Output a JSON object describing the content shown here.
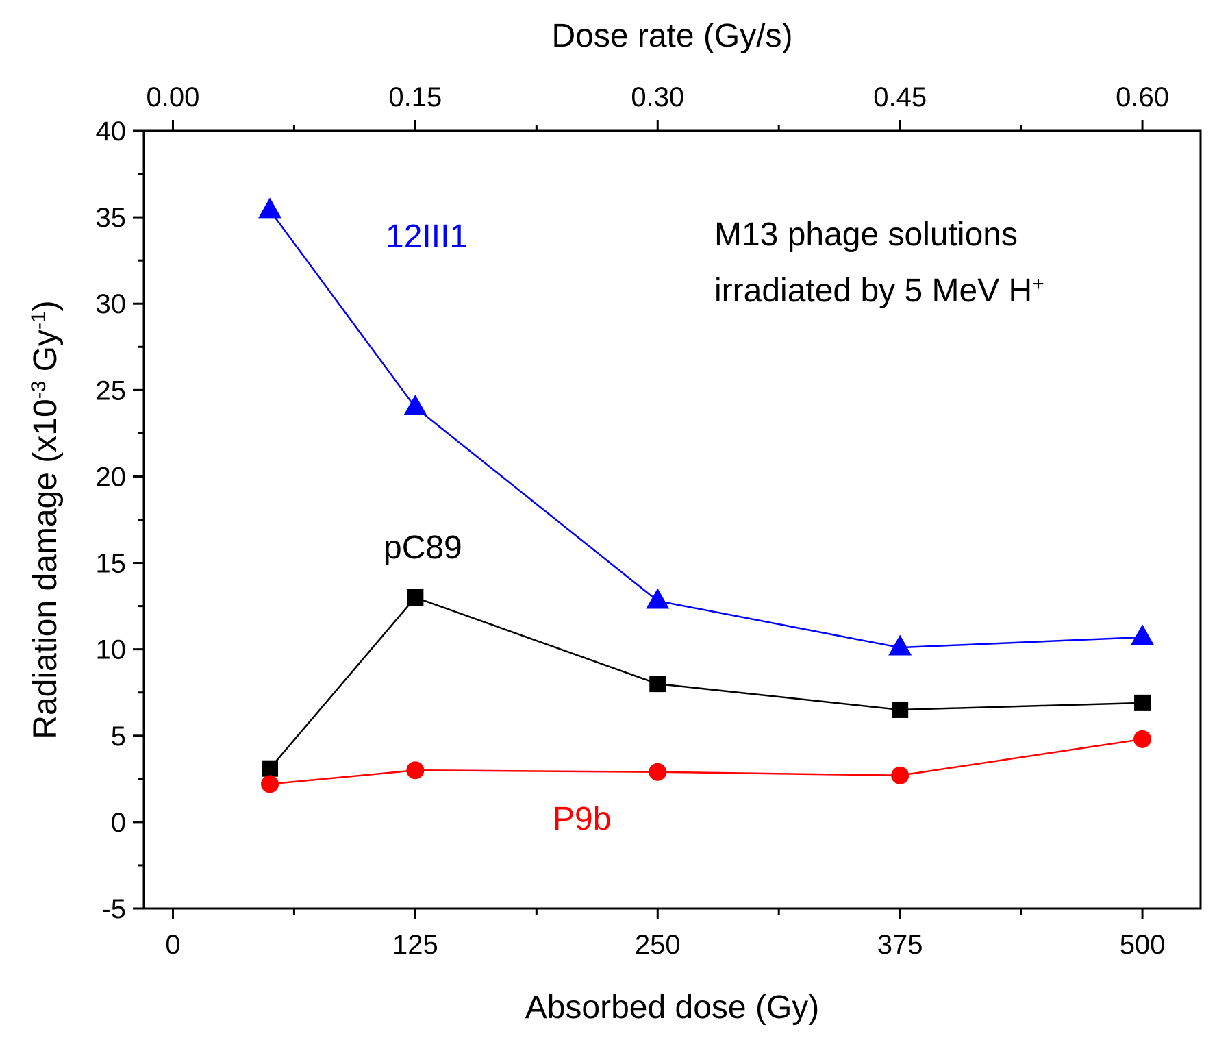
{
  "chart_data": {
    "type": "line",
    "xlabel": "Absorbed dose (Gy)",
    "x2label": "Dose rate (Gy/s)",
    "ylabel_prefix": "Radiation damage (x10",
    "ylabel_exp1": "-3",
    "ylabel_mid": " Gy",
    "ylabel_exp2": "-1",
    "ylabel_suffix": ")",
    "xlim": [
      -15,
      530
    ],
    "ylim": [
      -5,
      40
    ],
    "x_ticks": [
      "0",
      "125",
      "250",
      "375",
      "500"
    ],
    "x_tick_values": [
      0,
      125,
      250,
      375,
      500
    ],
    "x2_ticks": [
      "0.00",
      "0.15",
      "0.30",
      "0.45",
      "0.60"
    ],
    "y_ticks": [
      "-5",
      "0",
      "5",
      "10",
      "15",
      "20",
      "25",
      "30",
      "35",
      "40"
    ],
    "y_tick_values": [
      -5,
      0,
      5,
      10,
      15,
      20,
      25,
      30,
      35,
      40
    ],
    "grid": false,
    "series": [
      {
        "name": "12III1",
        "color": "#0000ff",
        "marker": "triangle",
        "x": [
          50,
          125,
          250,
          375,
          500
        ],
        "values": [
          35.4,
          24.0,
          12.8,
          10.1,
          10.7
        ]
      },
      {
        "name": "pC89",
        "color": "#000000",
        "marker": "square",
        "x": [
          50,
          125,
          250,
          375,
          500
        ],
        "values": [
          3.1,
          13.0,
          8.0,
          6.5,
          6.9
        ]
      },
      {
        "name": "P9b",
        "color": "#ff0000",
        "marker": "circle",
        "x": [
          50,
          125,
          250,
          375,
          500
        ],
        "values": [
          2.2,
          3.0,
          2.9,
          2.7,
          4.8
        ]
      }
    ],
    "annotation_line1": "M13 phage solutions",
    "annotation_line2": "irradiated by 5 MeV H",
    "annotation_sup": "+"
  }
}
